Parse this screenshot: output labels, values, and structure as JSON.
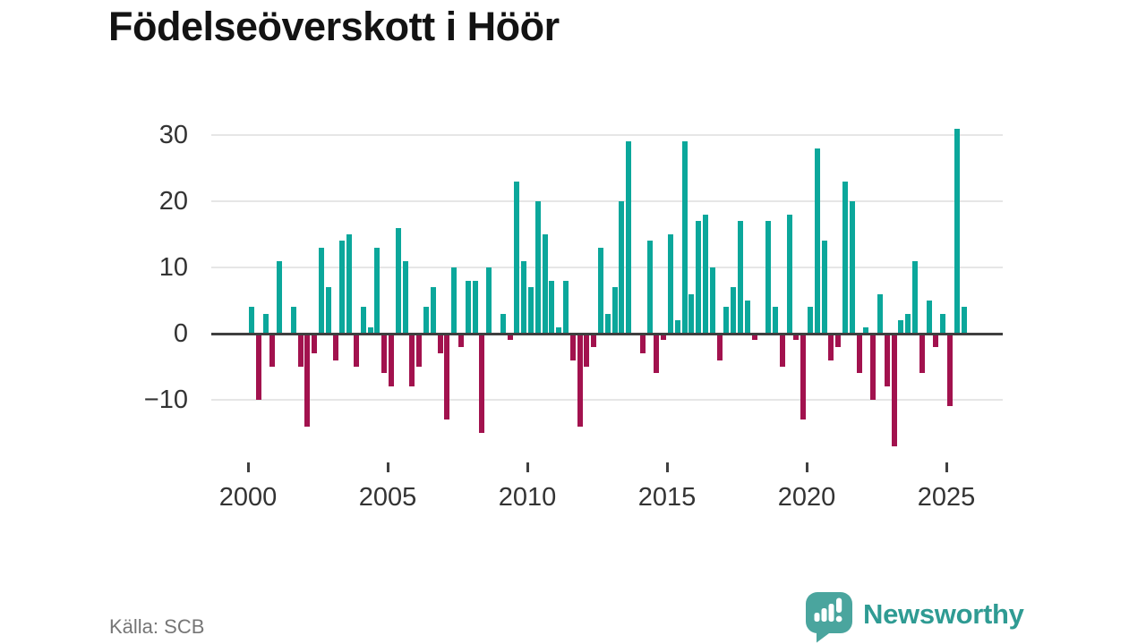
{
  "title": "Födelseöverskott i Höör",
  "source": "Källa: SCB",
  "logo": {
    "text": "Newsworthy",
    "bubble_color": "#4aa59e",
    "text_color": "#2f9b93"
  },
  "chart_data": {
    "type": "bar",
    "title": "Födelseöverskott i Höör",
    "xlabel": "",
    "ylabel": "",
    "frequency": "quarterly",
    "start": "2000-Q1",
    "end": "2025-Q3",
    "ylim": [
      -17,
      31
    ],
    "grid": true,
    "legend": "none",
    "y_ticks": [
      30,
      20,
      10,
      0,
      -10
    ],
    "y_tick_labels": [
      "30",
      "20",
      "10",
      "0",
      "−10"
    ],
    "x_ticks": [
      2000,
      2005,
      2010,
      2015,
      2020,
      2025
    ],
    "x_tick_labels": [
      "2000",
      "2005",
      "2010",
      "2015",
      "2020",
      "2025"
    ],
    "positive_color": "#0ba79b",
    "negative_color": "#a2124e",
    "series": [
      {
        "year": 2000,
        "values": [
          4,
          -10,
          3,
          -5
        ]
      },
      {
        "year": 2001,
        "values": [
          11,
          0,
          4,
          -5
        ]
      },
      {
        "year": 2002,
        "values": [
          -14,
          -3,
          13,
          7
        ]
      },
      {
        "year": 2003,
        "values": [
          -4,
          14,
          15,
          -5
        ]
      },
      {
        "year": 2004,
        "values": [
          4,
          1,
          13,
          -6
        ]
      },
      {
        "year": 2005,
        "values": [
          -8,
          16,
          11,
          -8
        ]
      },
      {
        "year": 2006,
        "values": [
          -5,
          4,
          7,
          -3
        ]
      },
      {
        "year": 2007,
        "values": [
          -13,
          10,
          -2,
          8
        ]
      },
      {
        "year": 2008,
        "values": [
          8,
          -15,
          10,
          0
        ]
      },
      {
        "year": 2009,
        "values": [
          3,
          -1,
          23,
          11
        ]
      },
      {
        "year": 2010,
        "values": [
          7,
          20,
          15,
          8
        ]
      },
      {
        "year": 2011,
        "values": [
          1,
          8,
          -4,
          -14
        ]
      },
      {
        "year": 2012,
        "values": [
          -5,
          -2,
          13,
          3
        ]
      },
      {
        "year": 2013,
        "values": [
          7,
          20,
          29,
          0
        ]
      },
      {
        "year": 2014,
        "values": [
          -3,
          14,
          -6,
          -1
        ]
      },
      {
        "year": 2015,
        "values": [
          15,
          2,
          29,
          6
        ]
      },
      {
        "year": 2016,
        "values": [
          17,
          18,
          10,
          -4
        ]
      },
      {
        "year": 2017,
        "values": [
          4,
          7,
          17,
          5
        ]
      },
      {
        "year": 2018,
        "values": [
          -1,
          0,
          17,
          4
        ]
      },
      {
        "year": 2019,
        "values": [
          -5,
          18,
          -1,
          -13
        ]
      },
      {
        "year": 2020,
        "values": [
          4,
          28,
          14,
          -4
        ]
      },
      {
        "year": 2021,
        "values": [
          -2,
          23,
          20,
          -6
        ]
      },
      {
        "year": 2022,
        "values": [
          1,
          -10,
          6,
          -8
        ]
      },
      {
        "year": 2023,
        "values": [
          -17,
          2,
          3,
          11
        ]
      },
      {
        "year": 2024,
        "values": [
          -6,
          5,
          -2,
          3
        ]
      },
      {
        "year": 2025,
        "values": [
          -11,
          31,
          4
        ]
      }
    ]
  }
}
